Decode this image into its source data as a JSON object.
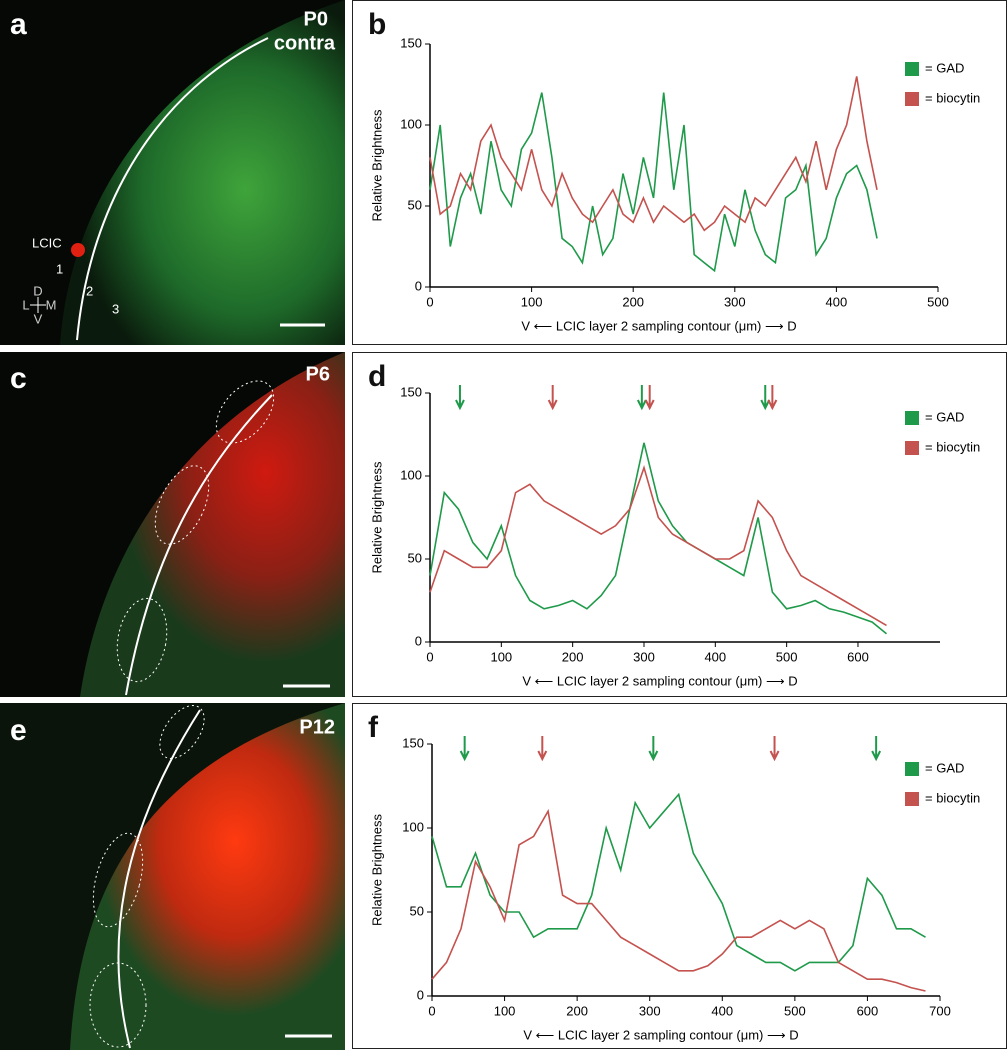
{
  "panels": [
    {
      "label": "a",
      "texts": [
        "P0",
        "contra"
      ],
      "region": "LCIC",
      "layers": [
        "1",
        "2",
        "3"
      ],
      "compass": [
        "D",
        "L",
        "M",
        "V"
      ]
    },
    {
      "label": "c",
      "texts": [
        "P6"
      ]
    },
    {
      "label": "e",
      "texts": [
        "P12"
      ]
    }
  ],
  "chart_data": [
    {
      "type": "line",
      "label": "b",
      "ylabel": "Relative Brightness",
      "xlabel": "V ⟵ LCIC layer 2 sampling contour (μm) ⟶ D",
      "xlim": [
        0,
        500
      ],
      "xticks": [
        0,
        100,
        200,
        300,
        400,
        500
      ],
      "ylim": [
        0,
        150
      ],
      "yticks": [
        0,
        50,
        100,
        150
      ],
      "legend": "upper right",
      "x": [
        0,
        10,
        20,
        30,
        40,
        50,
        60,
        70,
        80,
        90,
        100,
        110,
        120,
        130,
        140,
        150,
        160,
        170,
        180,
        190,
        200,
        210,
        220,
        230,
        240,
        250,
        260,
        270,
        280,
        290,
        300,
        310,
        320,
        330,
        340,
        350,
        360,
        370,
        380,
        390,
        400,
        410,
        420,
        430,
        440
      ],
      "series": [
        {
          "name": "= GAD",
          "color": "#1f9a4a",
          "values": [
            60,
            100,
            25,
            55,
            70,
            45,
            90,
            60,
            50,
            85,
            95,
            120,
            80,
            30,
            25,
            15,
            50,
            20,
            30,
            70,
            45,
            80,
            55,
            120,
            60,
            100,
            20,
            15,
            10,
            45,
            25,
            60,
            35,
            20,
            15,
            55,
            60,
            75,
            20,
            30,
            55,
            70,
            75,
            60,
            30
          ]
        },
        {
          "name": "= biocytin",
          "color": "#c4524e",
          "values": [
            80,
            45,
            50,
            70,
            60,
            90,
            100,
            80,
            70,
            60,
            85,
            60,
            50,
            70,
            55,
            45,
            40,
            50,
            60,
            45,
            40,
            55,
            40,
            50,
            45,
            40,
            45,
            35,
            40,
            50,
            45,
            40,
            55,
            50,
            60,
            70,
            80,
            65,
            90,
            60,
            85,
            100,
            130,
            90,
            60
          ]
        }
      ]
    },
    {
      "type": "line",
      "label": "d",
      "ylabel": "Relative Brightness",
      "xlabel": "V ⟵ LCIC layer 2 sampling contour (μm) ⟶ D",
      "xlim": [
        0,
        715
      ],
      "xticks": [
        0,
        100,
        200,
        300,
        400,
        500,
        600
      ],
      "ylim": [
        0,
        150
      ],
      "yticks": [
        0,
        50,
        100,
        150
      ],
      "legend": "upper right",
      "arrows": [
        {
          "x": 42,
          "color": "#1f9a4a"
        },
        {
          "x": 172,
          "color": "#c4524e"
        },
        {
          "x": 297,
          "color": "#1f9a4a"
        },
        {
          "x": 308,
          "color": "#c4524e"
        },
        {
          "x": 470,
          "color": "#1f9a4a"
        },
        {
          "x": 480,
          "color": "#c4524e"
        }
      ],
      "x": [
        0,
        20,
        40,
        60,
        80,
        100,
        120,
        140,
        160,
        180,
        200,
        220,
        240,
        260,
        280,
        300,
        320,
        340,
        360,
        380,
        400,
        420,
        440,
        460,
        480,
        500,
        520,
        540,
        560,
        580,
        600,
        620,
        640
      ],
      "series": [
        {
          "name": "= GAD",
          "color": "#1f9a4a",
          "values": [
            40,
            90,
            80,
            60,
            50,
            70,
            40,
            25,
            20,
            22,
            25,
            20,
            28,
            40,
            80,
            120,
            85,
            70,
            60,
            55,
            50,
            45,
            40,
            75,
            30,
            20,
            22,
            25,
            20,
            18,
            15,
            12,
            5
          ]
        },
        {
          "name": "= biocytin",
          "color": "#c4524e",
          "values": [
            30,
            55,
            50,
            45,
            45,
            55,
            90,
            95,
            85,
            80,
            75,
            70,
            65,
            70,
            80,
            105,
            75,
            65,
            60,
            55,
            50,
            50,
            55,
            85,
            75,
            55,
            40,
            35,
            30,
            25,
            20,
            15,
            10
          ]
        }
      ]
    },
    {
      "type": "line",
      "label": "f",
      "ylabel": "Relative Brightness",
      "xlabel": "V ⟵ LCIC layer 2 sampling contour (μm) ⟶ D",
      "xlim": [
        0,
        700
      ],
      "xticks": [
        0,
        100,
        200,
        300,
        400,
        500,
        600,
        700
      ],
      "ylim": [
        0,
        150
      ],
      "yticks": [
        0,
        50,
        100,
        150
      ],
      "legend": "upper right",
      "arrows": [
        {
          "x": 45,
          "color": "#1f9a4a"
        },
        {
          "x": 152,
          "color": "#c4524e"
        },
        {
          "x": 305,
          "color": "#1f9a4a"
        },
        {
          "x": 472,
          "color": "#c4524e"
        },
        {
          "x": 612,
          "color": "#1f9a4a"
        }
      ],
      "x": [
        0,
        20,
        40,
        60,
        80,
        100,
        120,
        140,
        160,
        180,
        200,
        220,
        240,
        260,
        280,
        300,
        320,
        340,
        360,
        380,
        400,
        420,
        440,
        460,
        480,
        500,
        520,
        540,
        560,
        580,
        600,
        620,
        640,
        660,
        680
      ],
      "series": [
        {
          "name": "= GAD",
          "color": "#1f9a4a",
          "values": [
            95,
            65,
            65,
            85,
            60,
            50,
            50,
            35,
            40,
            40,
            40,
            60,
            100,
            75,
            115,
            100,
            110,
            120,
            85,
            70,
            55,
            30,
            25,
            20,
            20,
            15,
            20,
            20,
            20,
            30,
            70,
            60,
            40,
            40,
            35
          ]
        },
        {
          "name": "= biocytin",
          "color": "#c4524e",
          "values": [
            10,
            20,
            40,
            80,
            65,
            45,
            90,
            95,
            110,
            60,
            55,
            55,
            45,
            35,
            30,
            25,
            20,
            15,
            15,
            18,
            25,
            35,
            35,
            40,
            45,
            40,
            45,
            40,
            20,
            15,
            10,
            10,
            8,
            5,
            3
          ]
        }
      ]
    }
  ]
}
